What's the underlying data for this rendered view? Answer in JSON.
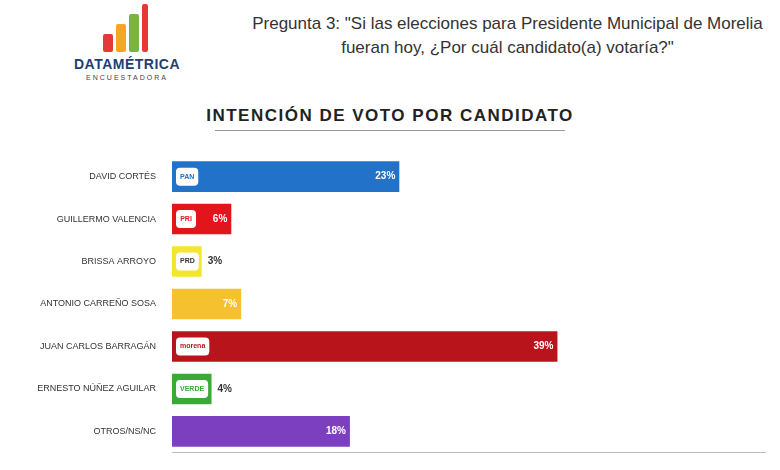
{
  "header": {
    "logo_title": "DATAMÉTRICA",
    "logo_subtitle": "ENCUESTADORA",
    "question": "Pregunta 3: \"Si las elecciones para Presidente Municipal de Morelia fueran hoy, ¿Por cuál candidato(a) votaría?\""
  },
  "chart_data": {
    "type": "bar",
    "orientation": "horizontal",
    "title": "INTENCIÓN DE VOTO POR CANDIDATO",
    "categories": [
      "DAVID CORTÉS",
      "GUILLERMO VALENCIA",
      "BRISSA ARROYO",
      "ANTONIO CARREÑO SOSA",
      "JUAN CARLOS BARRAGÁN",
      "ERNESTO NÚÑEZ AGUILAR",
      "OTROS/NS/NC"
    ],
    "values": [
      23,
      6,
      3,
      7,
      39,
      4,
      18
    ],
    "value_labels": [
      "23%",
      "6%",
      "3%",
      "7%",
      "39%",
      "4%",
      "18%"
    ],
    "colors": [
      "#2372c9",
      "#e3151c",
      "#f4e530",
      "#f5c12e",
      "#b8141c",
      "#3aa936",
      "#7b3fc0"
    ],
    "party_labels": [
      "PAN",
      "PRI",
      "PRD",
      null,
      "morena",
      "VERDE",
      null
    ],
    "xlim": [
      0,
      60
    ],
    "data_labels": true,
    "tick_labels": "y",
    "grid": false
  }
}
